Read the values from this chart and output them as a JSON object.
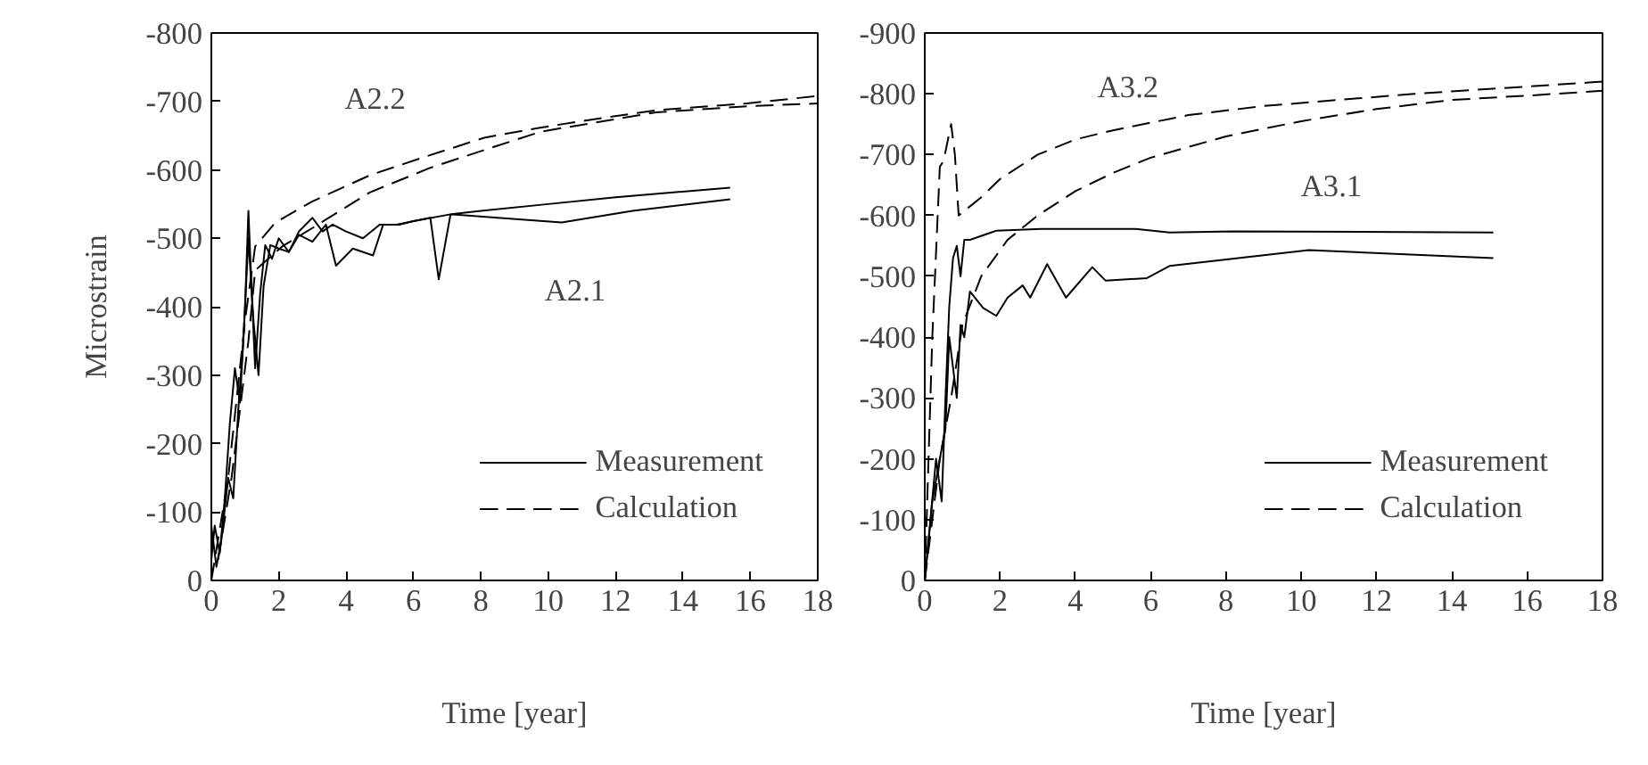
{
  "chart_data": [
    {
      "type": "line",
      "xlabel": "Time [year]",
      "ylabel": "Microstrain",
      "xlim": [
        0,
        18
      ],
      "ylim": [
        0,
        -800
      ],
      "xticks": [
        0,
        2,
        4,
        6,
        8,
        10,
        12,
        14,
        16,
        18
      ],
      "yticks": [
        0,
        -100,
        -200,
        -300,
        -400,
        -500,
        -600,
        -700,
        -800
      ],
      "grid": false,
      "legend": "bottom right",
      "annotations": [
        "A2.2",
        "A2.1"
      ],
      "series": [
        {
          "name": "Measurement",
          "color": "#000000",
          "line_style": "solid",
          "x": [
            0,
            0.1,
            0.25,
            0.4,
            0.55,
            0.7,
            0.85,
            1.0,
            1.1,
            1.2,
            1.3,
            1.45,
            1.6,
            1.8,
            2.0,
            2.3,
            2.6,
            3.0,
            3.3,
            3.6,
            4.0,
            4.5,
            5.0,
            5.5,
            6.0,
            6.5,
            6.75,
            7.1,
            8.0,
            10.0,
            12.0,
            15.4
          ],
          "values": [
            -30,
            -80,
            -40,
            -120,
            -230,
            -310,
            -260,
            -400,
            -540,
            -420,
            -310,
            -420,
            -490,
            -470,
            -500,
            -480,
            -510,
            -530,
            -510,
            -520,
            -510,
            -500,
            -520,
            -520,
            -525,
            -530,
            -440,
            -535,
            -540,
            -550,
            -560,
            -574
          ]
        },
        {
          "name": "Measurement",
          "color": "#000000",
          "line_style": "solid",
          "x": [
            0,
            0.15,
            0.3,
            0.5,
            0.65,
            0.8,
            0.95,
            1.1,
            1.25,
            1.4,
            1.55,
            1.75,
            2.0,
            2.3,
            2.6,
            3.0,
            3.4,
            3.7,
            4.2,
            4.8,
            5.1,
            5.6,
            6.0,
            7.1,
            8.5,
            10.4,
            12.5,
            15.4
          ],
          "values": [
            -80,
            -20,
            -60,
            -150,
            -120,
            -250,
            -350,
            -500,
            -380,
            -300,
            -430,
            -490,
            -485,
            -480,
            -505,
            -495,
            -520,
            -460,
            -485,
            -475,
            -520,
            -520,
            -525,
            -535,
            -530,
            -523,
            -540,
            -557
          ]
        },
        {
          "name": "Calculation",
          "color": "#000000",
          "line_style": "dashed",
          "x": [
            0,
            0.5,
            1.0,
            1.3,
            1.9,
            3.0,
            4.7,
            6.4,
            8.1,
            9.8,
            11.5,
            13.2,
            15.9,
            18
          ],
          "values": [
            0,
            -150,
            -380,
            -488,
            -523,
            -554,
            -592,
            -620,
            -647,
            -662,
            -675,
            -687,
            -697,
            -708
          ]
        },
        {
          "name": "Calculation",
          "color": "#000000",
          "line_style": "dashed",
          "x": [
            0.2,
            0.6,
            1.1,
            1.3,
            2.1,
            3.0,
            4.7,
            6.5,
            8.1,
            9.8,
            13.2,
            15.9,
            18
          ],
          "values": [
            -30,
            -150,
            -350,
            -453,
            -488,
            -515,
            -567,
            -603,
            -629,
            -656,
            -684,
            -693,
            -697
          ]
        }
      ]
    },
    {
      "type": "line",
      "xlabel": "Time [year]",
      "xlim": [
        0,
        18
      ],
      "ylim": [
        0,
        -900
      ],
      "xticks": [
        0,
        2,
        4,
        6,
        8,
        10,
        12,
        14,
        16,
        18
      ],
      "yticks": [
        0,
        -100,
        -200,
        -300,
        -400,
        -500,
        -600,
        -700,
        -800,
        -900
      ],
      "grid": false,
      "legend": "bottom right",
      "annotations": [
        "A3.2",
        "A3.1"
      ],
      "series": [
        {
          "name": "Measurement",
          "color": "#000000",
          "line_style": "solid",
          "x": [
            0,
            0.15,
            0.3,
            0.45,
            0.55,
            0.65,
            0.75,
            0.85,
            0.95,
            1.05,
            1.2,
            1.9,
            3.1,
            5.6,
            6.5,
            8.2,
            15.1
          ],
          "values": [
            0,
            -100,
            -200,
            -130,
            -300,
            -450,
            -530,
            -550,
            -500,
            -560,
            -560,
            -575,
            -578,
            -578,
            -572,
            -574,
            -572
          ]
        },
        {
          "name": "Measurement",
          "color": "#000000",
          "line_style": "solid",
          "x": [
            0,
            0.2,
            0.4,
            0.55,
            0.65,
            0.75,
            0.85,
            0.95,
            1.05,
            1.2,
            1.55,
            1.9,
            2.2,
            2.6,
            2.8,
            3.25,
            3.75,
            4.45,
            4.8,
            5.9,
            6.5,
            10.2,
            15.1
          ],
          "values": [
            0,
            -130,
            -200,
            -250,
            -400,
            -350,
            -300,
            -420,
            -400,
            -475,
            -448,
            -435,
            -465,
            -485,
            -465,
            -520,
            -465,
            -515,
            -493,
            -497,
            -517,
            -543,
            -530
          ]
        },
        {
          "name": "Calculation",
          "color": "#000000",
          "line_style": "dashed",
          "x": [
            0,
            0.2,
            0.4,
            0.5,
            0.6,
            0.7,
            0.8,
            0.9,
            1.5,
            2,
            3,
            4,
            5,
            7,
            9,
            11,
            13,
            15,
            18
          ],
          "values": [
            0,
            -400,
            -680,
            -690,
            -720,
            -750,
            -700,
            -600,
            -630,
            -660,
            -700,
            -725,
            -740,
            -765,
            -780,
            -790,
            -800,
            -808,
            -820
          ]
        },
        {
          "name": "Calculation",
          "color": "#000000",
          "line_style": "dashed",
          "x": [
            0,
            0.4,
            0.7,
            1.0,
            1.5,
            2.2,
            3,
            4,
            5,
            6,
            8,
            10,
            12,
            14,
            16,
            18
          ],
          "values": [
            0,
            -200,
            -300,
            -420,
            -500,
            -560,
            -600,
            -640,
            -670,
            -695,
            -730,
            -755,
            -775,
            -790,
            -797,
            -805
          ]
        }
      ]
    }
  ]
}
